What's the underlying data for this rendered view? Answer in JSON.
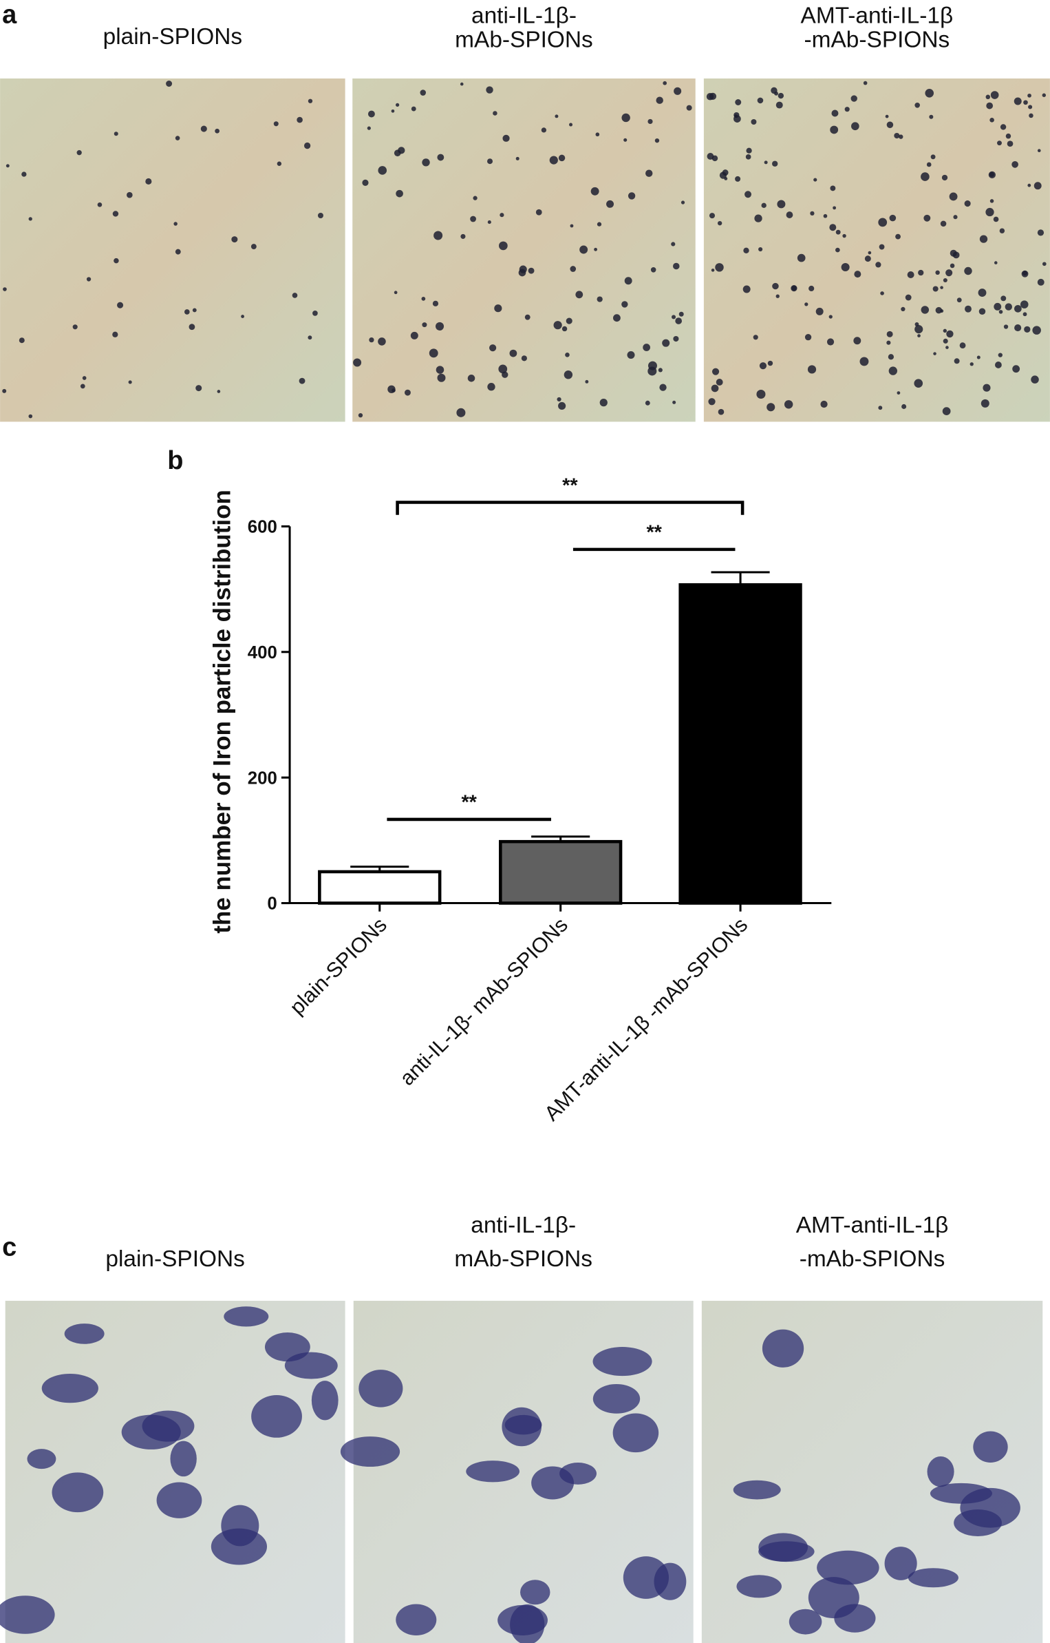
{
  "panel_a": {
    "label": "a",
    "images": [
      {
        "title_lines": [
          "plain-SPIONs"
        ]
      },
      {
        "title_lines": [
          "anti-IL-1β-",
          "mAb-SPIONs"
        ]
      },
      {
        "title_lines": [
          "AMT-anti-IL-1β",
          "-mAb-SPIONs"
        ]
      }
    ]
  },
  "chart_data": {
    "type": "bar",
    "panel_label": "b",
    "y_label": "the number of Iron particle distribution",
    "categories": [
      "plain-SPIONs",
      "anti-IL-1β- mAb-SPIONs",
      "AMT-anti-IL-1β -mAb-SPIONs"
    ],
    "values": [
      50,
      98,
      507
    ],
    "errors": [
      8,
      8,
      20
    ],
    "colors": [
      "#ffffff",
      "#606060",
      "#000000"
    ],
    "ylim": [
      0,
      600
    ],
    "yticks": [
      0,
      200,
      400,
      600
    ],
    "annotations": [
      "**",
      "**",
      "**"
    ]
  },
  "panel_c": {
    "label": "c",
    "images": [
      {
        "title_lines": [
          "plain-SPIONs"
        ]
      },
      {
        "title_lines": [
          "anti-IL-1β-",
          "mAb-SPIONs"
        ]
      },
      {
        "title_lines": [
          "AMT-anti-IL-1β",
          "-mAb-SPIONs"
        ]
      }
    ]
  }
}
